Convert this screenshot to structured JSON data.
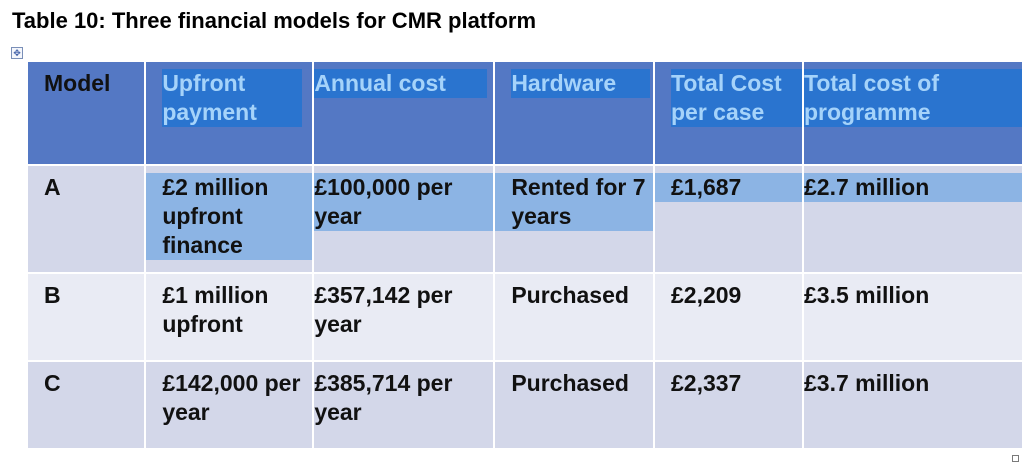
{
  "title": "Table 10: Three financial models for CMR platform",
  "table": {
    "headers": [
      "Model",
      "Upfront payment",
      "Annual cost",
      "Hardware",
      "Total Cost per case",
      "Total cost of programme"
    ],
    "rows": [
      {
        "model": "A",
        "upfront": "£2 million upfront finance",
        "annual": "£100,000 per year",
        "hardware": "Rented for 7 years",
        "cost_per_case": "£1,687",
        "total_cost": "£2.7 million"
      },
      {
        "model": "B",
        "upfront": "£1 million upfront",
        "annual": "£357,142 per year",
        "hardware": "Purchased",
        "cost_per_case": "£2,209",
        "total_cost": "£3.5 million"
      },
      {
        "model": "C",
        "upfront": "£142,000 per year",
        "annual": "£385,714 per year",
        "hardware": "Purchased",
        "cost_per_case": "£2,337",
        "total_cost": "£3.7 million"
      }
    ]
  },
  "colors": {
    "header_bg": "#5478c4",
    "header_highlight": "#2a74cf",
    "header_text_highlight": "#a5d3fa",
    "row_a_highlight": "#8cb4e4",
    "row_dark": "#d3d7e9",
    "row_light": "#e9ebf4"
  },
  "icons": {
    "table_move_handle": "table-move-handle-icon",
    "table_resize_handle": "table-resize-handle-icon"
  }
}
